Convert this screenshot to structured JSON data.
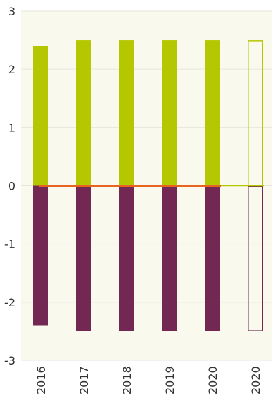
{
  "chart_data": {
    "type": "bar",
    "categories": [
      "2016",
      "2017",
      "2018",
      "2019",
      "2020",
      "2020"
    ],
    "series": [
      {
        "values": [
          2.4,
          2.5,
          2.5,
          2.5,
          2.5,
          2.5
        ]
      },
      {
        "values": [
          -2.4,
          -2.5,
          -2.5,
          -2.5,
          -2.5,
          -2.5
        ]
      }
    ],
    "line": {
      "values": [
        0,
        0,
        0,
        0,
        0
      ]
    },
    "projected": [
      false,
      false,
      false,
      false,
      false,
      true
    ],
    "ylim": [
      -3,
      3
    ],
    "yticks": [
      "3",
      "2",
      "1",
      "0",
      "-1",
      "-2",
      "-3"
    ],
    "grid": true,
    "colors": {
      "plot_background": "#f9f9ee",
      "grid": "#e6e6dc",
      "positive": "#b5c700",
      "negative": "#722852",
      "line": "#e8641e"
    }
  }
}
